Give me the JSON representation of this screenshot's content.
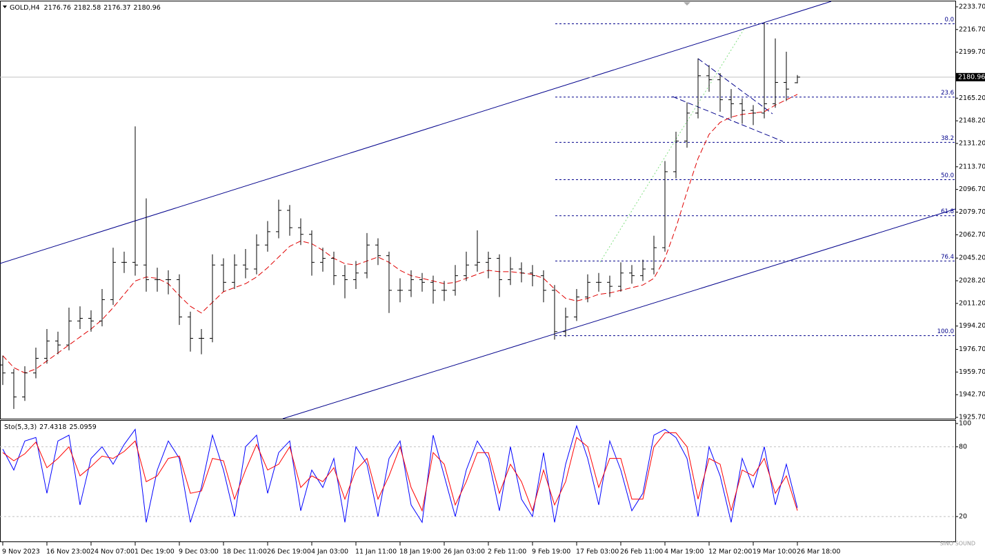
{
  "chart_data": [
    {
      "type": "ohlc",
      "title": "GOLD,H4",
      "categories": [
        "9 Nov 2023",
        null,
        null,
        null,
        "16 Nov 23:00",
        null,
        null,
        null,
        "24 Nov 07:00",
        null,
        null,
        null,
        "1 Dec 19:00",
        null,
        null,
        null,
        "9 Dec 03:00",
        null,
        null,
        null,
        "18 Dec 11:00",
        null,
        null,
        null,
        "26 Dec 19:00",
        null,
        null,
        null,
        "4 Jan 03:00",
        null,
        null,
        null,
        "11 Jan 11:00",
        null,
        null,
        null,
        "18 Jan 19:00",
        null,
        null,
        null,
        "26 Jan 03:00",
        null,
        null,
        null,
        "2 Feb 11:00",
        null,
        null,
        null,
        "9 Feb 19:00",
        null,
        null,
        null,
        "17 Feb 03:00",
        null,
        null,
        null,
        "26 Feb 11:00",
        null,
        null,
        null,
        "4 Mar 19:00",
        null,
        null,
        null,
        "12 Mar 02:00",
        null,
        null,
        null,
        "19 Mar 10:00",
        null,
        null,
        null,
        "26 Mar 18:00"
      ],
      "open": [
        1965,
        1959,
        1941,
        1959,
        1970,
        1983,
        1980,
        1998,
        2000,
        1998,
        2014,
        2042,
        2042,
        2040,
        2029,
        2029,
        2029,
        2001,
        1985,
        1985,
        2040,
        2027,
        2040,
        2037,
        2055,
        2065,
        2081,
        2068,
        2063,
        2042,
        2045,
        2032,
        2029,
        2034,
        2055,
        2047,
        2021,
        2021,
        2029,
        2027,
        2021,
        2021,
        2032,
        2040,
        2042,
        2045,
        2029,
        2037,
        2034,
        2032,
        2021,
        1990,
        2001,
        2016,
        2027,
        2027,
        2024,
        2034,
        2032,
        2037,
        2053,
        2110,
        2133,
        2154,
        2182,
        2179,
        2164,
        2161,
        2156,
        2154,
        2161,
        2177,
        2176.76
      ],
      "high": [
        1972,
        1962,
        1964,
        1978,
        1992,
        1990,
        2008,
        2009,
        2006,
        2022,
        2053,
        2050,
        2144,
        2090,
        2038,
        2036,
        2033,
        2005,
        1992,
        2048,
        2045,
        2048,
        2052,
        2063,
        2073,
        2089,
        2085,
        2075,
        2066,
        2053,
        2050,
        2040,
        2043,
        2064,
        2060,
        2050,
        2030,
        2036,
        2034,
        2032,
        2028,
        2040,
        2050,
        2066,
        2050,
        2048,
        2046,
        2042,
        2040,
        2036,
        2025,
        2008,
        2022,
        2033,
        2034,
        2032,
        2042,
        2040,
        2044,
        2062,
        2118,
        2140,
        2162,
        2195,
        2190,
        2184,
        2172,
        2165,
        2160,
        2222,
        2210,
        2200,
        2182.58
      ],
      "low": [
        1950,
        1932,
        1938,
        1955,
        1966,
        1973,
        1976,
        1992,
        1990,
        1994,
        2010,
        2034,
        2032,
        2020,
        2020,
        2018,
        1995,
        1975,
        1973,
        1982,
        2020,
        2022,
        2030,
        2033,
        2050,
        2060,
        2062,
        2055,
        2032,
        2035,
        2025,
        2015,
        2022,
        2030,
        2040,
        2004,
        2012,
        2016,
        2020,
        2011,
        2013,
        2017,
        2028,
        2035,
        2030,
        2016,
        2025,
        2027,
        2024,
        2012,
        1984,
        1986,
        1998,
        2012,
        2020,
        2016,
        2020,
        2026,
        2028,
        2033,
        2050,
        2105,
        2128,
        2150,
        2170,
        2155,
        2150,
        2146,
        2145,
        2150,
        2158,
        2163,
        2176.37
      ],
      "close": [
        1959,
        1941,
        1959,
        1970,
        1983,
        1980,
        1998,
        2000,
        1998,
        2014,
        2042,
        2042,
        2040,
        2029,
        2029,
        2029,
        2001,
        1985,
        1985,
        2040,
        2027,
        2040,
        2037,
        2055,
        2065,
        2081,
        2068,
        2063,
        2042,
        2045,
        2032,
        2029,
        2034,
        2055,
        2047,
        2021,
        2021,
        2029,
        2027,
        2021,
        2021,
        2032,
        2040,
        2042,
        2045,
        2029,
        2037,
        2034,
        2032,
        2021,
        1990,
        2001,
        2016,
        2027,
        2027,
        2024,
        2034,
        2032,
        2037,
        2053,
        2110,
        2133,
        2154,
        2182,
        2179,
        2164,
        2161,
        2156,
        2154,
        2161,
        2177,
        2172,
        2180.96
      ],
      "bar_color": "#000000",
      "ma": {
        "color": "#e00000",
        "values": [
          1972,
          1963,
          1959,
          1962,
          1968,
          1974,
          1980,
          1986,
          1992,
          1999,
          2008,
          2018,
          2028,
          2031,
          2030,
          2026,
          2017,
          2009,
          2004,
          2012,
          2020,
          2023,
          2026,
          2031,
          2038,
          2046,
          2054,
          2058,
          2056,
          2051,
          2045,
          2041,
          2040,
          2043,
          2046,
          2042,
          2036,
          2032,
          2030,
          2028,
          2026,
          2027,
          2030,
          2033,
          2036,
          2035,
          2035,
          2034,
          2033,
          2030,
          2022,
          2015,
          2013,
          2015,
          2018,
          2019,
          2021,
          2023,
          2025,
          2030,
          2045,
          2068,
          2095,
          2120,
          2138,
          2147,
          2151,
          2153,
          2154,
          2155,
          2160,
          2164,
          2168
        ]
      },
      "ylim": [
        1924.7,
        2237.8
      ],
      "yticks": [
        {
          "value": 2233.7,
          "label": "2233.70"
        },
        {
          "value": 2216.7,
          "label": "2216.70"
        },
        {
          "value": 2199.7,
          "label": "2199.70"
        },
        {
          "value": 2165.2,
          "label": "2165.20"
        },
        {
          "value": 2148.2,
          "label": "2148.20"
        },
        {
          "value": 2131.2,
          "label": "2131.20"
        },
        {
          "value": 2113.7,
          "label": "2113.70"
        },
        {
          "value": 2096.7,
          "label": "2096.70"
        },
        {
          "value": 2079.7,
          "label": "2079.70"
        },
        {
          "value": 2062.7,
          "label": "2062.70"
        },
        {
          "value": 2045.2,
          "label": "2045.20"
        },
        {
          "value": 2028.2,
          "label": "2028.20"
        },
        {
          "value": 2011.2,
          "label": "2011.20"
        },
        {
          "value": 1994.2,
          "label": "1994.20"
        },
        {
          "value": 1976.7,
          "label": "1976.70"
        },
        {
          "value": 1959.7,
          "label": "1959.70"
        },
        {
          "value": 1942.7,
          "label": "1942.70"
        },
        {
          "value": 1925.7,
          "label": "1925.70"
        }
      ],
      "current_price": {
        "value": 2180.96,
        "label": "2180.96"
      },
      "fib_color": "#00008b",
      "fib_levels": [
        {
          "value": 2221,
          "label": "0.0"
        },
        {
          "value": 2166,
          "label": "23.6"
        },
        {
          "value": 2132,
          "label": "38.2"
        },
        {
          "value": 2104,
          "label": "50.0"
        },
        {
          "value": 2077,
          "label": "61.8"
        },
        {
          "value": 2043,
          "label": "76.4"
        },
        {
          "value": 1987,
          "label": "100.0"
        }
      ]
    },
    {
      "type": "line",
      "title": "Sto(5,3,3)",
      "ylim": [
        -2,
        103
      ],
      "yticks": [
        100,
        80,
        20
      ],
      "series": [
        {
          "color": "#0000ff",
          "values": [
            78,
            60,
            85,
            88,
            40,
            85,
            90,
            30,
            70,
            80,
            65,
            82,
            95,
            15,
            60,
            85,
            70,
            15,
            45,
            90,
            60,
            20,
            80,
            90,
            40,
            75,
            85,
            25,
            60,
            45,
            70,
            15,
            80,
            65,
            20,
            70,
            85,
            30,
            15,
            90,
            55,
            20,
            60,
            85,
            70,
            25,
            80,
            35,
            20,
            75,
            15,
            65,
            98,
            70,
            30,
            85,
            60,
            25,
            40,
            90,
            95,
            88,
            70,
            20,
            80,
            55,
            15,
            70,
            45,
            80,
            30,
            65,
            27.4318
          ]
        },
        {
          "color": "#ff0000",
          "values": [
            75,
            68,
            74,
            84,
            62,
            70,
            80,
            55,
            63,
            72,
            70,
            76,
            85,
            50,
            55,
            70,
            72,
            40,
            42,
            70,
            68,
            35,
            60,
            82,
            60,
            65,
            80,
            45,
            55,
            50,
            62,
            35,
            60,
            70,
            35,
            55,
            80,
            45,
            25,
            75,
            65,
            30,
            50,
            75,
            75,
            40,
            65,
            50,
            25,
            60,
            30,
            50,
            88,
            80,
            45,
            70,
            70,
            35,
            35,
            80,
            92,
            92,
            80,
            35,
            70,
            65,
            25,
            60,
            55,
            70,
            40,
            55,
            25.0959
          ]
        }
      ]
    }
  ],
  "watermark": "SINO SOUND"
}
